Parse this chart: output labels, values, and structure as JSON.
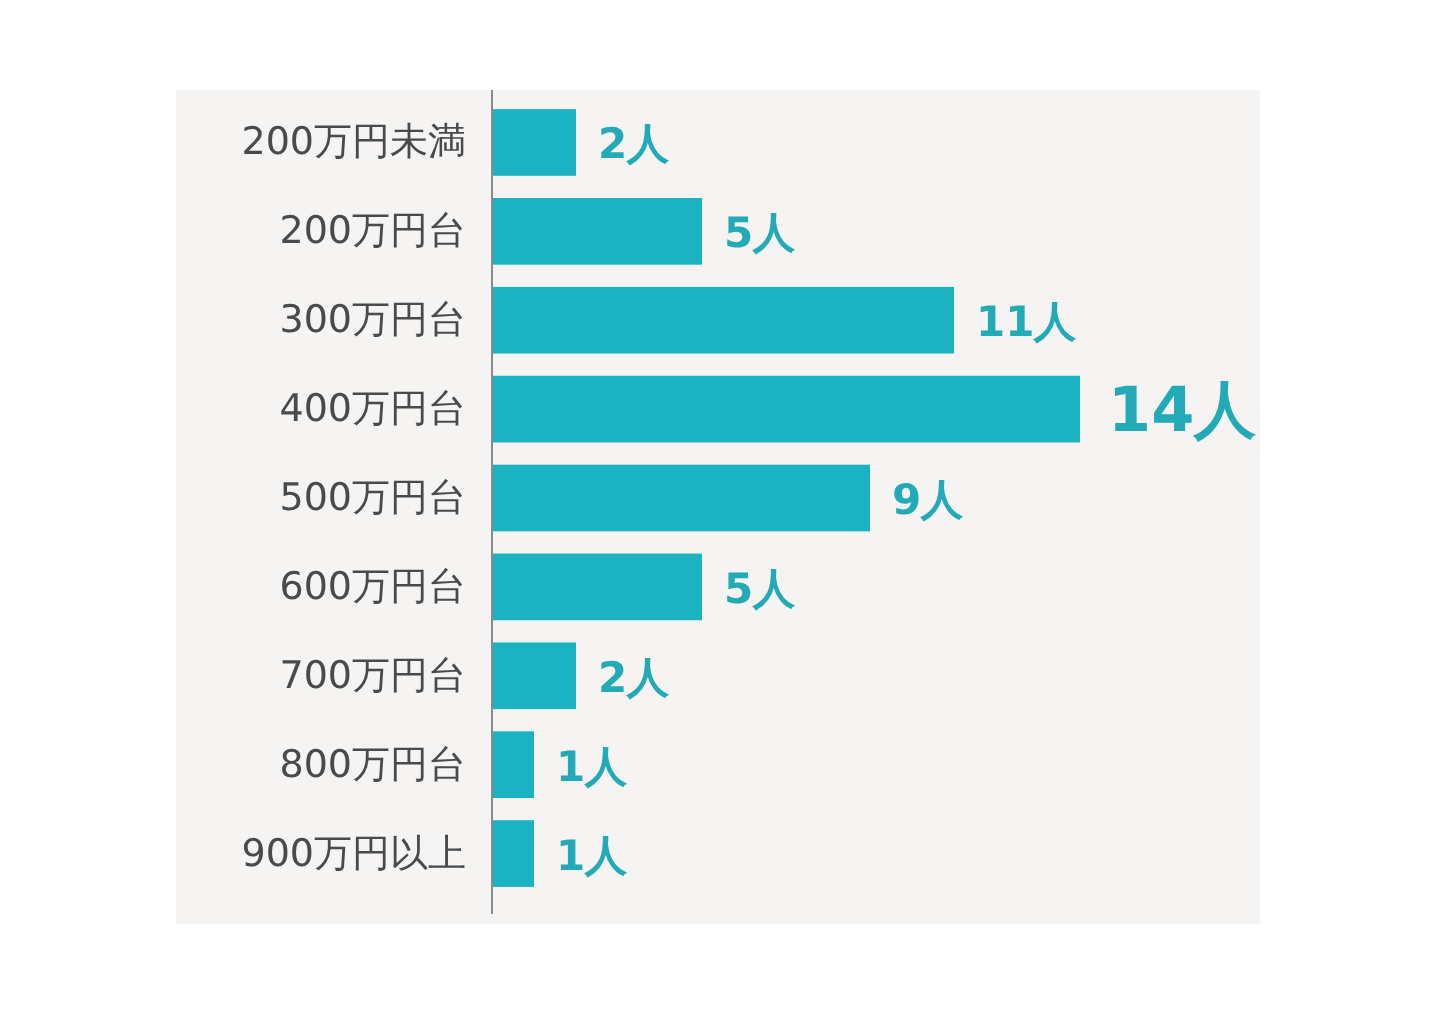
{
  "chart_data": {
    "type": "bar",
    "orientation": "horizontal",
    "categories": [
      "200万円未満",
      "200万円台",
      "300万円台",
      "400万円台",
      "500万円台",
      "600万円台",
      "700万円台",
      "800万円台",
      "900万円以上"
    ],
    "values": [
      2,
      5,
      11,
      14,
      9,
      5,
      2,
      1,
      1
    ],
    "color": "#1bb3c1",
    "value_labels": [
      "2人",
      "5人",
      "11人",
      "14人",
      "9人",
      "5人",
      "2人",
      "1人",
      "1人"
    ]
  }
}
